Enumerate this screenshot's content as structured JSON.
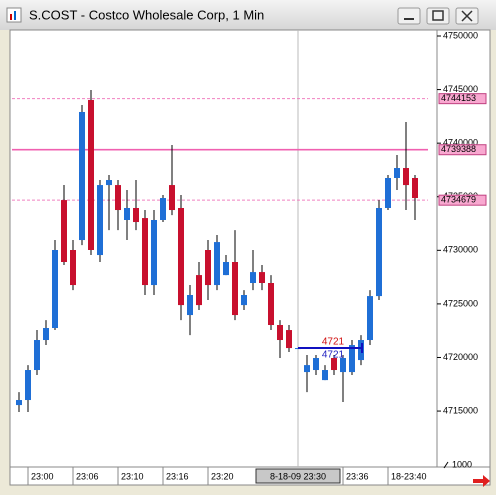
{
  "window_title": "S.COST - Costco Wholesale Corp, 1 Min",
  "chart_data": {
    "type": "candlestick",
    "categories": [
      null,
      "23:00",
      null,
      null,
      null,
      null,
      "23:06",
      null,
      null,
      null,
      null,
      "23:10",
      null,
      null,
      null,
      null,
      "23:16",
      null,
      null,
      null,
      null,
      "23:20",
      null,
      null,
      null,
      null,
      null,
      null,
      null,
      null,
      null,
      "8-18-09 23:30",
      null,
      null,
      null,
      null,
      "23:36",
      null,
      null,
      null,
      null,
      "18-23:40",
      null,
      null,
      null
    ],
    "open": [
      4715560,
      4716030,
      4718830,
      4721630,
      4722750,
      4734690,
      4730030,
      4730960,
      4744030,
      4729560,
      4736090,
      4736090,
      4732830,
      4733950,
      4733010,
      4726760,
      4732830,
      4736090,
      4733950,
      4723960,
      4727690,
      4730030,
      4726760,
      4727690,
      4728910,
      4724890,
      4726950,
      4727970,
      4726950,
      4723030,
      4722560,
      4720880,
      4718640,
      4718830,
      4717890,
      4719950,
      4718640,
      4718640,
      4719760,
      4721630,
      4725730,
      4733950,
      4736750,
      4737680,
      4736750
    ],
    "high": [
      4716770,
      4719290,
      4722560,
      4723490,
      4730960,
      4736090,
      4730960,
      4743560,
      4744960,
      4736560,
      4737030,
      4736560,
      4735630,
      4736560,
      4733760,
      4733760,
      4735160,
      4739830,
      4735160,
      4726760,
      4728910,
      4730960,
      4731430,
      4729560,
      4731890,
      4726290,
      4730030,
      4728630,
      4727690,
      4723490,
      4723030,
      4720880,
      4720230,
      4720230,
      4719290,
      4720230,
      4720230,
      4721630,
      4722090,
      4726290,
      4734690,
      4737030,
      4738890,
      4741970,
      4737030
    ],
    "low": [
      4714910,
      4714910,
      4718360,
      4721160,
      4722560,
      4728630,
      4726290,
      4730490,
      4729560,
      4728910,
      4731890,
      4731890,
      4730960,
      4731890,
      4725830,
      4725830,
      4732640,
      4733290,
      4723490,
      4722090,
      4724430,
      4725360,
      4726290,
      4727690,
      4723490,
      4724430,
      4726290,
      4726290,
      4722560,
      4719950,
      4720510,
      4720880,
      4716770,
      4718360,
      4717890,
      4718360,
      4715840,
      4718360,
      4719290,
      4721160,
      4725360,
      4733760,
      4735630,
      4733760,
      4732830
    ],
    "close": [
      4716030,
      4718830,
      4721630,
      4722750,
      4730030,
      4728910,
      4726760,
      4742910,
      4730030,
      4736090,
      4736560,
      4733760,
      4733950,
      4732640,
      4726760,
      4732830,
      4734880,
      4733760,
      4724890,
      4725830,
      4724890,
      4726760,
      4730770,
      4728910,
      4723960,
      4725830,
      4727970,
      4726950,
      4723030,
      4721630,
      4720880,
      4720880,
      4719290,
      4719950,
      4718830,
      4718830,
      4719950,
      4721160,
      4721630,
      4725730,
      4733950,
      4736750,
      4737680,
      4736090,
      4734880
    ],
    "up_color": "#1f6fd6",
    "down_color": "#c8102e",
    "ylim": [
      4709780,
      4750560
    ],
    "yticks": [
      4750000,
      4745000,
      4740000,
      4735000,
      4730000,
      4725000,
      4720000,
      4715000
    ],
    "levels": [
      {
        "value": 4744153,
        "color": "#f080c0",
        "style": "dashed"
      },
      {
        "value": 4739388,
        "color": "#f060b0",
        "style": "solid"
      },
      {
        "value": 4734679,
        "color": "#f080c0",
        "style": "dashed"
      }
    ],
    "annotations": [
      {
        "text": "4721",
        "color": "#d01010"
      },
      {
        "text": "4721",
        "color": "#2020c0"
      }
    ],
    "scale_label": "1000",
    "crosshair_index": 31
  }
}
